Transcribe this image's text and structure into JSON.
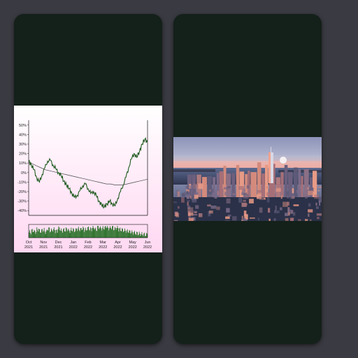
{
  "chart_data": {
    "type": "line",
    "title": "",
    "xlabel": "",
    "ylabel": "",
    "y_ticks": [
      "50%",
      "40%",
      "30%",
      "20%",
      "10%",
      "0%",
      "-10%",
      "-20%",
      "-30%",
      "-40%"
    ],
    "ylim": [
      -45,
      55
    ],
    "x_ticks": [
      {
        "month": "Oct",
        "year": "2021"
      },
      {
        "month": "Nov",
        "year": "2021"
      },
      {
        "month": "Dec",
        "year": "2021"
      },
      {
        "month": "Jan",
        "year": "2022"
      },
      {
        "month": "Feb",
        "year": "2022"
      },
      {
        "month": "Mar",
        "year": "2022"
      },
      {
        "month": "Apr",
        "year": "2022"
      },
      {
        "month": "May",
        "year": "2022"
      },
      {
        "month": "Jun",
        "year": "2022"
      }
    ],
    "series": [
      {
        "values": [
          12,
          8,
          3,
          -6,
          -10,
          -2,
          5,
          12,
          13,
          8,
          4,
          0,
          -3,
          -9,
          -13,
          -17,
          -22,
          -26,
          -24,
          -19,
          -14,
          -12,
          -17,
          -22,
          -20,
          -24,
          -30,
          -34,
          -36,
          -33,
          -30,
          -33,
          -35,
          -27,
          -20,
          -13,
          -5,
          5,
          14,
          20,
          16,
          22,
          30,
          35,
          32
        ]
      },
      {
        "color": "#4a4a4a",
        "values": [
          11,
          9,
          7,
          5,
          3,
          2,
          1,
          0,
          -1,
          -2,
          -3,
          -4,
          -5,
          -6,
          -7,
          -8,
          -9,
          -10,
          -11,
          -12,
          -12,
          -13,
          -13,
          -13,
          -12,
          -11,
          -10,
          -9,
          -8,
          -7
        ]
      }
    ],
    "volume": [
      0.45,
      0.6,
      0.5,
      0.7,
      0.55,
      0.65,
      0.5,
      0.75,
      0.6,
      0.7,
      0.55,
      0.8,
      0.6,
      0.65,
      0.72,
      0.58,
      0.68,
      0.62,
      0.75,
      0.7,
      0.78,
      0.66,
      0.8,
      0.72,
      0.85,
      0.7,
      0.9,
      0.78,
      0.82,
      0.95,
      0.8,
      0.88,
      0.76,
      0.84,
      0.7,
      0.66,
      0.6,
      0.55,
      0.5,
      0.45,
      0.4,
      0.35,
      0.3,
      0.28,
      0.25
    ],
    "colors": {
      "line": "#1f5a1f",
      "volume": "#1e6b1e"
    }
  }
}
